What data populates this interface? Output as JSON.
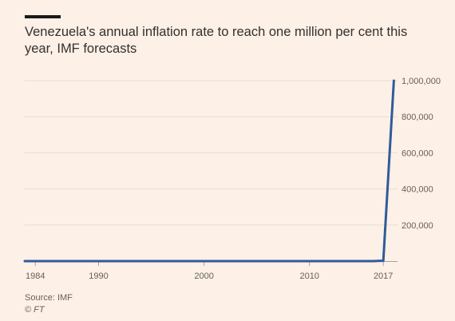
{
  "chart_data": {
    "type": "line",
    "title": "Venezuela's annual inflation rate to reach one million per cent this year, IMF forecasts",
    "xlabel": "",
    "ylabel": "",
    "xlim": [
      1983,
      2018.5
    ],
    "ylim": [
      0,
      1000000
    ],
    "x_ticks": [
      1984,
      1990,
      2000,
      2010,
      2017
    ],
    "x_tick_labels": [
      "1984",
      "1990",
      "2000",
      "2010",
      "2017"
    ],
    "y_ticks": [
      200000,
      400000,
      600000,
      800000,
      1000000
    ],
    "y_tick_labels": [
      "200,000",
      "400,000",
      "600,000",
      "800,000",
      "1,000,000"
    ],
    "grid": true,
    "series": [
      {
        "name": "",
        "color": "#2e5c99",
        "x": [
          1983,
          1990,
          2000,
          2010,
          2014,
          2015,
          2016,
          2017,
          2018
        ],
        "y": [
          0,
          0,
          0,
          0,
          0,
          0,
          0,
          2000,
          1000000
        ]
      }
    ]
  },
  "source": "Source: IMF",
  "credit": "© FT"
}
